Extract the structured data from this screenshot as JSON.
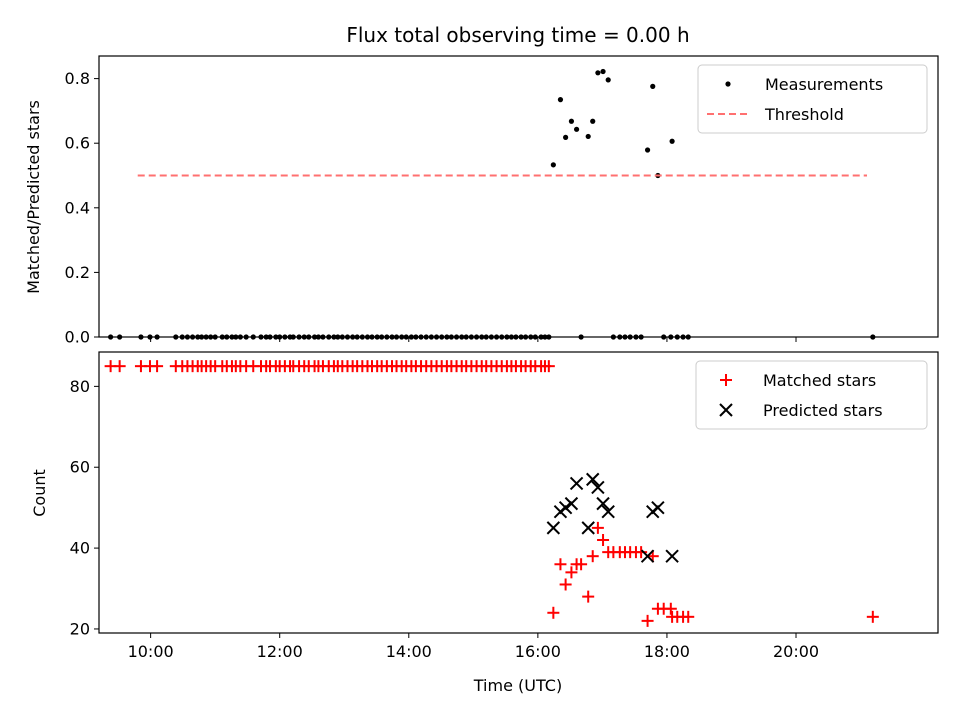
{
  "figure": {
    "title": "Flux total observing time = 0.00 h"
  },
  "chart_data": [
    {
      "type": "scatter",
      "ylabel": "Matched/Predicted stars",
      "xlim": [
        9.2,
        22.2
      ],
      "ylim": [
        0.0,
        0.87
      ],
      "yticks": [
        0.0,
        0.2,
        0.4,
        0.6,
        0.8
      ],
      "ytick_labels": [
        "0.0",
        "0.2",
        "0.4",
        "0.6",
        "0.8"
      ],
      "xticks": [
        10,
        12,
        14,
        16,
        18,
        20
      ],
      "grid": false,
      "legend_placement": "top-right",
      "series": [
        {
          "name": "Measurements",
          "kind": "points",
          "color": "#000000",
          "x": [
            9.38,
            9.52,
            9.85,
            9.99,
            10.1,
            10.39,
            10.49,
            10.57,
            10.65,
            10.73,
            10.79,
            10.86,
            10.93,
            11.0,
            11.11,
            11.18,
            11.26,
            11.32,
            11.39,
            11.48,
            11.59,
            11.71,
            11.79,
            11.85,
            11.94,
            12.0,
            12.08,
            12.16,
            12.21,
            12.3,
            12.38,
            12.45,
            12.54,
            12.6,
            12.67,
            12.76,
            12.84,
            12.9,
            12.97,
            13.05,
            13.13,
            13.2,
            13.28,
            13.36,
            13.43,
            13.51,
            13.58,
            13.66,
            13.74,
            13.81,
            13.89,
            13.96,
            14.04,
            14.11,
            14.19,
            14.27,
            14.35,
            14.43,
            14.51,
            14.59,
            14.66,
            14.74,
            14.82,
            14.89,
            14.97,
            15.05,
            15.13,
            15.2,
            15.28,
            15.36,
            15.44,
            15.52,
            15.59,
            15.66,
            15.74,
            15.81,
            15.89,
            15.96,
            16.05,
            16.11,
            16.17,
            16.67,
            17.17,
            17.27,
            17.35,
            17.43,
            17.52,
            17.6,
            17.95,
            18.06,
            18.16,
            18.25,
            18.33,
            21.19,
            16.24,
            16.35,
            16.43,
            16.52,
            16.6,
            16.78,
            16.85,
            16.93,
            17.01,
            17.09,
            17.7,
            17.78,
            17.86,
            18.08
          ],
          "y": [
            0,
            0,
            0,
            0,
            0,
            0,
            0,
            0,
            0,
            0,
            0,
            0,
            0,
            0,
            0,
            0,
            0,
            0,
            0,
            0,
            0,
            0,
            0,
            0,
            0,
            0,
            0,
            0,
            0,
            0,
            0,
            0,
            0,
            0,
            0,
            0,
            0,
            0,
            0,
            0,
            0,
            0,
            0,
            0,
            0,
            0,
            0,
            0,
            0,
            0,
            0,
            0,
            0,
            0,
            0,
            0,
            0,
            0,
            0,
            0,
            0,
            0,
            0,
            0,
            0,
            0,
            0,
            0,
            0,
            0,
            0,
            0,
            0,
            0,
            0,
            0,
            0,
            0,
            0,
            0,
            0,
            0,
            0,
            0,
            0,
            0,
            0,
            0,
            0,
            0,
            0,
            0,
            0,
            0,
            0.533,
            0.735,
            0.618,
            0.668,
            0.643,
            0.621,
            0.668,
            0.818,
            0.822,
            0.796,
            0.579,
            0.776,
            0.5,
            0.606
          ]
        },
        {
          "name": "Threshold",
          "kind": "dashed-line",
          "color": "#ff7070",
          "x": [
            9.8,
            21.1
          ],
          "y": [
            0.5,
            0.5
          ]
        }
      ]
    },
    {
      "type": "scatter",
      "xlabel": "Time (UTC)",
      "ylabel": "Count",
      "xlim": [
        9.2,
        22.2
      ],
      "ylim": [
        19.0,
        88.5
      ],
      "yticks": [
        20,
        40,
        60,
        80
      ],
      "ytick_labels": [
        "20",
        "40",
        "60",
        "80"
      ],
      "xticks": [
        10,
        12,
        14,
        16,
        18,
        20
      ],
      "xtick_labels": [
        "10:00",
        "12:00",
        "14:00",
        "16:00",
        "18:00",
        "20:00"
      ],
      "grid": false,
      "legend_placement": "top-right",
      "series": [
        {
          "name": "Matched stars",
          "kind": "plus",
          "color": "#ff0000",
          "x": [
            9.38,
            9.52,
            9.85,
            9.99,
            10.1,
            10.39,
            10.49,
            10.57,
            10.65,
            10.73,
            10.79,
            10.86,
            10.93,
            11.0,
            11.11,
            11.18,
            11.26,
            11.32,
            11.39,
            11.48,
            11.59,
            11.71,
            11.79,
            11.85,
            11.94,
            12.0,
            12.08,
            12.16,
            12.21,
            12.3,
            12.38,
            12.45,
            12.54,
            12.6,
            12.67,
            12.76,
            12.84,
            12.9,
            12.97,
            13.05,
            13.13,
            13.2,
            13.28,
            13.36,
            13.43,
            13.51,
            13.58,
            13.66,
            13.74,
            13.81,
            13.89,
            13.96,
            14.04,
            14.11,
            14.19,
            14.27,
            14.35,
            14.43,
            14.51,
            14.59,
            14.66,
            14.74,
            14.82,
            14.89,
            14.97,
            15.05,
            15.13,
            15.2,
            15.28,
            15.36,
            15.44,
            15.52,
            15.59,
            15.66,
            15.74,
            15.81,
            15.89,
            15.96,
            16.05,
            16.11,
            16.17,
            16.24,
            16.35,
            16.43,
            16.52,
            16.6,
            16.67,
            16.78,
            16.85,
            16.93,
            17.01,
            17.09,
            17.17,
            17.27,
            17.35,
            17.43,
            17.52,
            17.6,
            17.7,
            17.78,
            17.86,
            17.95,
            18.06,
            18.08,
            18.16,
            18.25,
            18.33,
            21.19
          ],
          "y": [
            85,
            85,
            85,
            85,
            85,
            85,
            85,
            85,
            85,
            85,
            85,
            85,
            85,
            85,
            85,
            85,
            85,
            85,
            85,
            85,
            85,
            85,
            85,
            85,
            85,
            85,
            85,
            85,
            85,
            85,
            85,
            85,
            85,
            85,
            85,
            85,
            85,
            85,
            85,
            85,
            85,
            85,
            85,
            85,
            85,
            85,
            85,
            85,
            85,
            85,
            85,
            85,
            85,
            85,
            85,
            85,
            85,
            85,
            85,
            85,
            85,
            85,
            85,
            85,
            85,
            85,
            85,
            85,
            85,
            85,
            85,
            85,
            85,
            85,
            85,
            85,
            85,
            85,
            85,
            85,
            85,
            24,
            36,
            31,
            34,
            36,
            36,
            28,
            38,
            45,
            42,
            39,
            39,
            39,
            39,
            39,
            39,
            39,
            22,
            38,
            25,
            25,
            25,
            23,
            23,
            23,
            23,
            23
          ]
        },
        {
          "name": "Predicted stars",
          "kind": "x",
          "color": "#000000",
          "x": [
            16.24,
            16.35,
            16.43,
            16.52,
            16.6,
            16.78,
            16.85,
            16.93,
            17.01,
            17.09,
            17.7,
            17.78,
            17.86,
            18.08
          ],
          "y": [
            45,
            49,
            50,
            51,
            56,
            45,
            57,
            55,
            51,
            49,
            38,
            49,
            50,
            38
          ]
        }
      ]
    }
  ]
}
